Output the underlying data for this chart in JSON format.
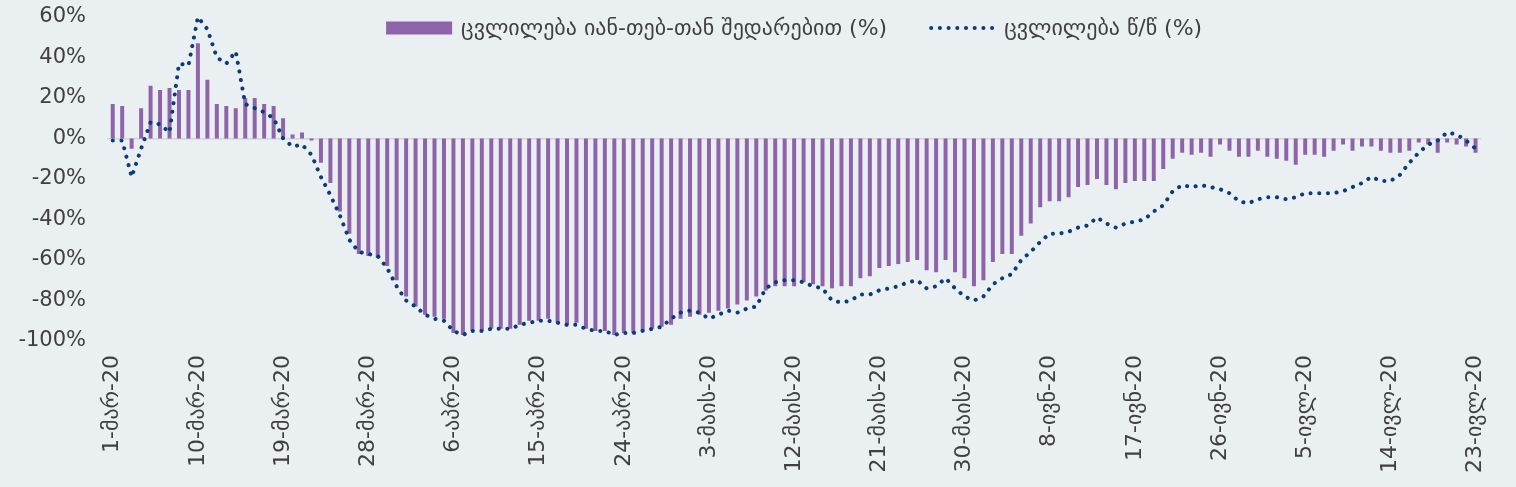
{
  "chart_data": {
    "type": "bar",
    "categories": [
      "1-მარ-20",
      null,
      null,
      null,
      null,
      null,
      null,
      null,
      null,
      "10-მარ-20",
      null,
      null,
      null,
      null,
      null,
      null,
      null,
      null,
      "19-მარ-20",
      null,
      null,
      null,
      null,
      null,
      null,
      null,
      null,
      "28-მარ-20",
      null,
      null,
      null,
      null,
      null,
      null,
      null,
      null,
      "6-აპრ-20",
      null,
      null,
      null,
      null,
      null,
      null,
      null,
      null,
      "15-აპრ-20",
      null,
      null,
      null,
      null,
      null,
      null,
      null,
      null,
      "24-აპრ-20",
      null,
      null,
      null,
      null,
      null,
      null,
      null,
      null,
      "3-მაის-20",
      null,
      null,
      null,
      null,
      null,
      null,
      null,
      null,
      "12-მაის-20",
      null,
      null,
      null,
      null,
      null,
      null,
      null,
      null,
      "21-მაის-20",
      null,
      null,
      null,
      null,
      null,
      null,
      null,
      null,
      "30-მაის-20",
      null,
      null,
      null,
      null,
      null,
      null,
      null,
      null,
      "8-ივნ-20",
      null,
      null,
      null,
      null,
      null,
      null,
      null,
      null,
      "17-ივნ-20",
      null,
      null,
      null,
      null,
      null,
      null,
      null,
      null,
      "26-ივნ-20",
      null,
      null,
      null,
      null,
      null,
      null,
      null,
      null,
      "5-ივლ-20",
      null,
      null,
      null,
      null,
      null,
      null,
      null,
      null,
      "14-ივლ-20",
      null,
      null,
      null,
      null,
      null,
      null,
      null,
      null,
      "23-ივლ-20"
    ],
    "series": [
      {
        "name": "ცვლილება იან-თებ-თან შედარებით (%)",
        "color": "#8e63a9",
        "values": [
          17,
          16,
          -5,
          15,
          26,
          24,
          25,
          24,
          24,
          47,
          29,
          17,
          16,
          15,
          20,
          20,
          17,
          16,
          10,
          2,
          3,
          -1,
          -12,
          -22,
          -36,
          -47,
          -57,
          -58,
          -59,
          -63,
          -70,
          -78,
          -83,
          -87,
          -88,
          -89,
          -96,
          -97,
          -95,
          -95,
          -94,
          -94,
          -94,
          -92,
          -90,
          -90,
          -89,
          -91,
          -92,
          -91,
          -94,
          -95,
          -95,
          -97,
          -96,
          -96,
          -95,
          -94,
          -93,
          -92,
          -89,
          -88,
          -87,
          -86,
          -85,
          -84,
          -82,
          -80,
          -78,
          -75,
          -73,
          -73,
          -73,
          -71,
          -72,
          -73,
          -74,
          -73,
          -73,
          -69,
          -68,
          -64,
          -63,
          -62,
          -61,
          -60,
          -65,
          -66,
          -60,
          -66,
          -69,
          -73,
          -70,
          -61,
          -57,
          -57,
          -48,
          -42,
          -34,
          -31,
          -31,
          -29,
          -24,
          -23,
          -20,
          -23,
          -25,
          -22,
          -21,
          -21,
          -21,
          -15,
          -10,
          -7,
          -8,
          -7,
          -9,
          -3,
          -6,
          -9,
          -9,
          -6,
          -9,
          -10,
          -11,
          -13,
          -8,
          -8,
          -9,
          -6,
          -3,
          -6,
          -4,
          -4,
          -6,
          -7,
          -7,
          -6,
          -2,
          -3,
          -7,
          -2,
          -3,
          -4,
          -7
        ]
      },
      {
        "name": "ცვლილება წ/წ (%)",
        "type": "line",
        "color": "#0b3c7a",
        "line_style": "dotted",
        "marker": "none",
        "values": [
          -1,
          -1,
          -19,
          -5,
          8,
          7,
          3,
          37,
          36,
          60,
          54,
          40,
          37,
          43,
          17,
          15,
          13,
          10,
          0,
          -4,
          -3,
          -8,
          -19,
          -28,
          -38,
          -50,
          -56,
          -57,
          -58,
          -64,
          -73,
          -80,
          -83,
          -87,
          -89,
          -90,
          -95,
          -97,
          -95,
          -95,
          -94,
          -94,
          -94,
          -92,
          -91,
          -90,
          -90,
          -91,
          -92,
          -92,
          -94,
          -95,
          -95,
          -97,
          -96,
          -96,
          -95,
          -94,
          -93,
          -89,
          -86,
          -85,
          -86,
          -89,
          -87,
          -85,
          -86,
          -84,
          -83,
          -74,
          -71,
          -70,
          -70,
          -71,
          -73,
          -74,
          -80,
          -81,
          -80,
          -77,
          -77,
          -75,
          -74,
          -73,
          -71,
          -70,
          -74,
          -73,
          -69,
          -74,
          -78,
          -80,
          -78,
          -72,
          -69,
          -67,
          -60,
          -56,
          -51,
          -47,
          -47,
          -46,
          -44,
          -43,
          -39,
          -42,
          -44,
          -42,
          -41,
          -40,
          -36,
          -33,
          -26,
          -23,
          -24,
          -23,
          -24,
          -25,
          -27,
          -31,
          -32,
          -30,
          -29,
          -29,
          -30,
          -29,
          -27,
          -27,
          -27,
          -27,
          -26,
          -24,
          -22,
          -19,
          -21,
          -21,
          -18,
          -12,
          -7,
          -3,
          -1,
          3,
          2,
          -1,
          -5
        ]
      }
    ],
    "ylim": [
      -100,
      60
    ],
    "yticks": [
      {
        "value": -100,
        "label": "-100%"
      },
      {
        "value": -80,
        "label": "-80%"
      },
      {
        "value": -60,
        "label": "-60%"
      },
      {
        "value": -40,
        "label": "-40%"
      },
      {
        "value": -20,
        "label": "-20%"
      },
      {
        "value": 0,
        "label": "0%"
      },
      {
        "value": 20,
        "label": "20%"
      },
      {
        "value": 40,
        "label": "40%"
      },
      {
        "value": 60,
        "label": "60%"
      }
    ],
    "legend": "top"
  }
}
